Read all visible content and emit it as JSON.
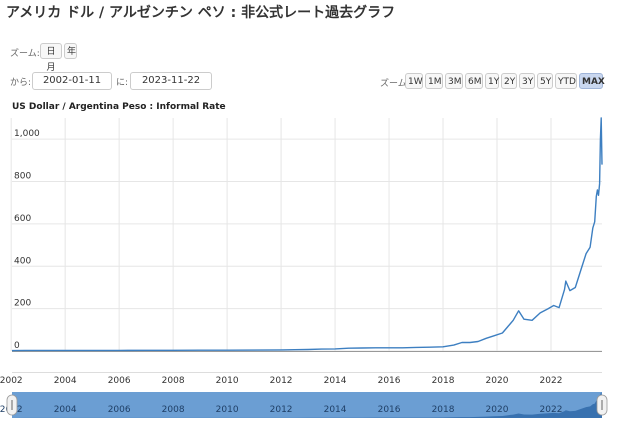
{
  "page_title": "アメリカ ドル / アルゼンチン ペソ : 非公式レート過去グラフ",
  "zoom_label": "ズーム:",
  "zoom_unit_buttons": [
    "日月",
    "年"
  ],
  "from_label": "から:",
  "from_date": "2002-01-11",
  "to_label": "に:",
  "to_date": "2023-11-22",
  "range_zoom_label": "ズーム:",
  "range_buttons": [
    "1W",
    "1M",
    "3M",
    "6M",
    "1Y",
    "2Y",
    "3Y",
    "5Y",
    "YTD",
    "MAX"
  ],
  "active_range": "MAX",
  "colors": {
    "line": "#3d7fc1",
    "navigator": "#6b9ed3",
    "grid": "#e6e6e6"
  },
  "chart_data": {
    "type": "line",
    "title": "US Dollar / Argentina Peso : Informal Rate",
    "xlabel": "",
    "ylabel": "",
    "xlim": [
      2002.03,
      2023.89
    ],
    "ylim": [
      0,
      1100
    ],
    "y_ticks": [
      0,
      200,
      400,
      600,
      800,
      1000
    ],
    "y_tick_labels": [
      "0",
      "200",
      "400",
      "600",
      "800",
      "1,000"
    ],
    "x_ticks": [
      2002,
      2004,
      2006,
      2008,
      2010,
      2012,
      2014,
      2016,
      2018,
      2020,
      2022
    ],
    "x_tick_labels": [
      "2002",
      "2004",
      "2006",
      "2008",
      "2010",
      "2012",
      "2014",
      "2016",
      "2018",
      "2020",
      "2022"
    ],
    "grid": true,
    "series": [
      {
        "x": [
          2002.03,
          2002.5,
          2003,
          2004,
          2005,
          2006,
          2007,
          2008,
          2009,
          2010,
          2011,
          2012,
          2012.5,
          2013,
          2013.5,
          2014,
          2014.5,
          2015,
          2015.5,
          2016,
          2016.5,
          2017,
          2017.5,
          2018,
          2018.4,
          2018.7,
          2019,
          2019.3,
          2019.6,
          2019.9,
          2020.2,
          2020.5,
          2020.6,
          2020.8,
          2021.0,
          2021.3,
          2021.6,
          2021.9,
          2022.1,
          2022.3,
          2022.5,
          2022.55,
          2022.7,
          2022.9,
          2023.1,
          2023.3,
          2023.45,
          2023.55,
          2023.62,
          2023.68,
          2023.72,
          2023.76,
          2023.8,
          2023.83,
          2023.86,
          2023.89
        ],
        "values": [
          2,
          3,
          3,
          3,
          3,
          3,
          3.1,
          3.2,
          3.8,
          4,
          4.2,
          5,
          6,
          7,
          9,
          10,
          13,
          14,
          15,
          15,
          15,
          17,
          18,
          20,
          28,
          40,
          40,
          45,
          60,
          72,
          85,
          130,
          145,
          190,
          150,
          145,
          180,
          200,
          215,
          205,
          290,
          330,
          285,
          300,
          380,
          460,
          490,
          580,
          610,
          730,
          760,
          735,
          790,
          1000,
          1100,
          880
        ]
      }
    ]
  }
}
